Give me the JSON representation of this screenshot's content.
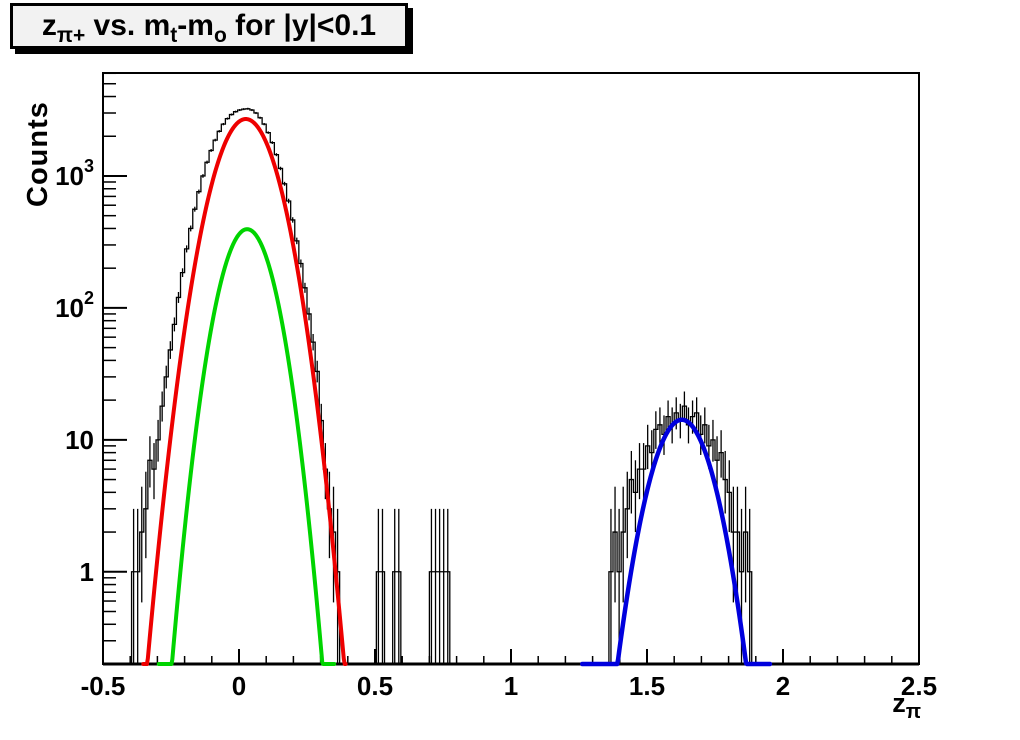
{
  "title": {
    "plain": "z_{pi+} vs. m_t-m_o for |y|<0.1",
    "segments": [
      {
        "t": "z"
      },
      {
        "t": "π+",
        "sub": true
      },
      {
        "t": " vs. m"
      },
      {
        "t": "t",
        "sub": true
      },
      {
        "t": "-m"
      },
      {
        "t": "o",
        "sub": true
      },
      {
        "t": " for |y|<0.1"
      }
    ]
  },
  "chart_data": {
    "type": "bar",
    "subtype": "histogram-log-y-with-gaussian-fits",
    "title": "z_{pi+} vs. m_t-m_o for |y|<0.1",
    "ylabel": "Counts",
    "xlabel_segments": [
      {
        "t": "z"
      },
      {
        "t": "π",
        "sub": true
      }
    ],
    "x_range": [
      -0.5,
      2.5
    ],
    "y_scale": "log",
    "y_range": [
      0.2,
      6030
    ],
    "grid": false,
    "x_major_ticks": [
      {
        "v": -0.5,
        "label": "-0.5"
      },
      {
        "v": 0,
        "label": "0"
      },
      {
        "v": 0.5,
        "label": "0.5"
      },
      {
        "v": 1,
        "label": "1"
      },
      {
        "v": 1.5,
        "label": "1.5"
      },
      {
        "v": 2,
        "label": "2"
      },
      {
        "v": 2.5,
        "label": "2.5"
      }
    ],
    "x_minor_step": 0.1,
    "y_major_ticks": [
      {
        "v": 1,
        "base": "1",
        "exp": ""
      },
      {
        "v": 10,
        "base": "10",
        "exp": ""
      },
      {
        "v": 100,
        "base": "10",
        "exp": "2"
      },
      {
        "v": 1000,
        "base": "10",
        "exp": "3"
      }
    ],
    "bin_width": 0.015,
    "histogram": {
      "color": "#000000",
      "error_bars": true,
      "bins": [
        [
          -0.3875,
          1
        ],
        [
          -0.3725,
          1
        ],
        [
          -0.3575,
          2
        ],
        [
          -0.3425,
          3
        ],
        [
          -0.3275,
          7
        ],
        [
          -0.3125,
          6
        ],
        [
          -0.2975,
          10
        ],
        [
          -0.2825,
          18
        ],
        [
          -0.2675,
          30
        ],
        [
          -0.2525,
          48
        ],
        [
          -0.2375,
          75
        ],
        [
          -0.2225,
          120
        ],
        [
          -0.2075,
          185
        ],
        [
          -0.1925,
          280
        ],
        [
          -0.1775,
          400
        ],
        [
          -0.1625,
          560
        ],
        [
          -0.1475,
          760
        ],
        [
          -0.1325,
          1000
        ],
        [
          -0.1175,
          1270
        ],
        [
          -0.1025,
          1560
        ],
        [
          -0.0875,
          1870
        ],
        [
          -0.0725,
          2180
        ],
        [
          -0.0575,
          2470
        ],
        [
          -0.0425,
          2720
        ],
        [
          -0.0275,
          2920
        ],
        [
          -0.0125,
          3070
        ],
        [
          0.0025,
          3160
        ],
        [
          0.0175,
          3210
        ],
        [
          0.0325,
          3230
        ],
        [
          0.0475,
          3160
        ],
        [
          0.0625,
          3000
        ],
        [
          0.0775,
          2760
        ],
        [
          0.0925,
          2470
        ],
        [
          0.1075,
          2130
        ],
        [
          0.1225,
          1790
        ],
        [
          0.1375,
          1450
        ],
        [
          0.1525,
          1140
        ],
        [
          0.1675,
          872
        ],
        [
          0.1825,
          646
        ],
        [
          0.1975,
          464
        ],
        [
          0.2125,
          322
        ],
        [
          0.2275,
          217
        ],
        [
          0.2425,
          142
        ],
        [
          0.2575,
          90
        ],
        [
          0.2725,
          55
        ],
        [
          0.2875,
          33
        ],
        [
          0.3025,
          14
        ],
        [
          0.3175,
          6
        ],
        [
          0.3325,
          3
        ],
        [
          0.3475,
          2
        ],
        [
          0.3625,
          1
        ],
        [
          0.5125,
          1
        ],
        [
          0.5275,
          1
        ],
        [
          0.5725,
          1
        ],
        [
          0.5875,
          1
        ],
        [
          0.7075,
          1
        ],
        [
          0.7225,
          1
        ],
        [
          0.7375,
          1
        ],
        [
          0.7525,
          1
        ],
        [
          0.7675,
          1
        ],
        [
          1.3675,
          1
        ],
        [
          1.3825,
          2
        ],
        [
          1.3975,
          1
        ],
        [
          1.4125,
          2
        ],
        [
          1.4275,
          3
        ],
        [
          1.4425,
          5
        ],
        [
          1.4575,
          4
        ],
        [
          1.4725,
          6
        ],
        [
          1.4875,
          6
        ],
        [
          1.5025,
          9
        ],
        [
          1.5175,
          8
        ],
        [
          1.5325,
          12
        ],
        [
          1.5475,
          13
        ],
        [
          1.5625,
          11
        ],
        [
          1.5775,
          15
        ],
        [
          1.5925,
          13
        ],
        [
          1.6075,
          16
        ],
        [
          1.6225,
          14
        ],
        [
          1.6375,
          18
        ],
        [
          1.6525,
          13
        ],
        [
          1.6675,
          15
        ],
        [
          1.6825,
          16
        ],
        [
          1.6975,
          11
        ],
        [
          1.7125,
          13
        ],
        [
          1.7275,
          9
        ],
        [
          1.7425,
          10
        ],
        [
          1.7575,
          7
        ],
        [
          1.7725,
          8
        ],
        [
          1.7875,
          5
        ],
        [
          1.8025,
          4
        ],
        [
          1.8175,
          2
        ],
        [
          1.8325,
          2
        ],
        [
          1.8475,
          1
        ],
        [
          1.8625,
          2
        ],
        [
          1.8775,
          1
        ]
      ]
    },
    "fits": [
      {
        "name": "main-peak-fit",
        "shape": "gaussian",
        "color": "#ee0000",
        "amplitude": 2700,
        "mean": 0.025,
        "sigma": 0.083,
        "draw_range": [
          -0.352,
          0.392
        ],
        "line_width": 4
      },
      {
        "name": "component-fit",
        "shape": "gaussian",
        "color": "#00d400",
        "amplitude": 395,
        "mean": 0.03,
        "sigma": 0.071,
        "draw_range": [
          -0.295,
          0.35
        ],
        "line_width": 4
      },
      {
        "name": "second-peak-fit",
        "shape": "gaussian",
        "color": "#0000dd",
        "amplitude": 14.2,
        "mean": 1.628,
        "sigma": 0.081,
        "draw_range": [
          1.262,
          1.952
        ],
        "line_width": 4.5
      }
    ]
  }
}
